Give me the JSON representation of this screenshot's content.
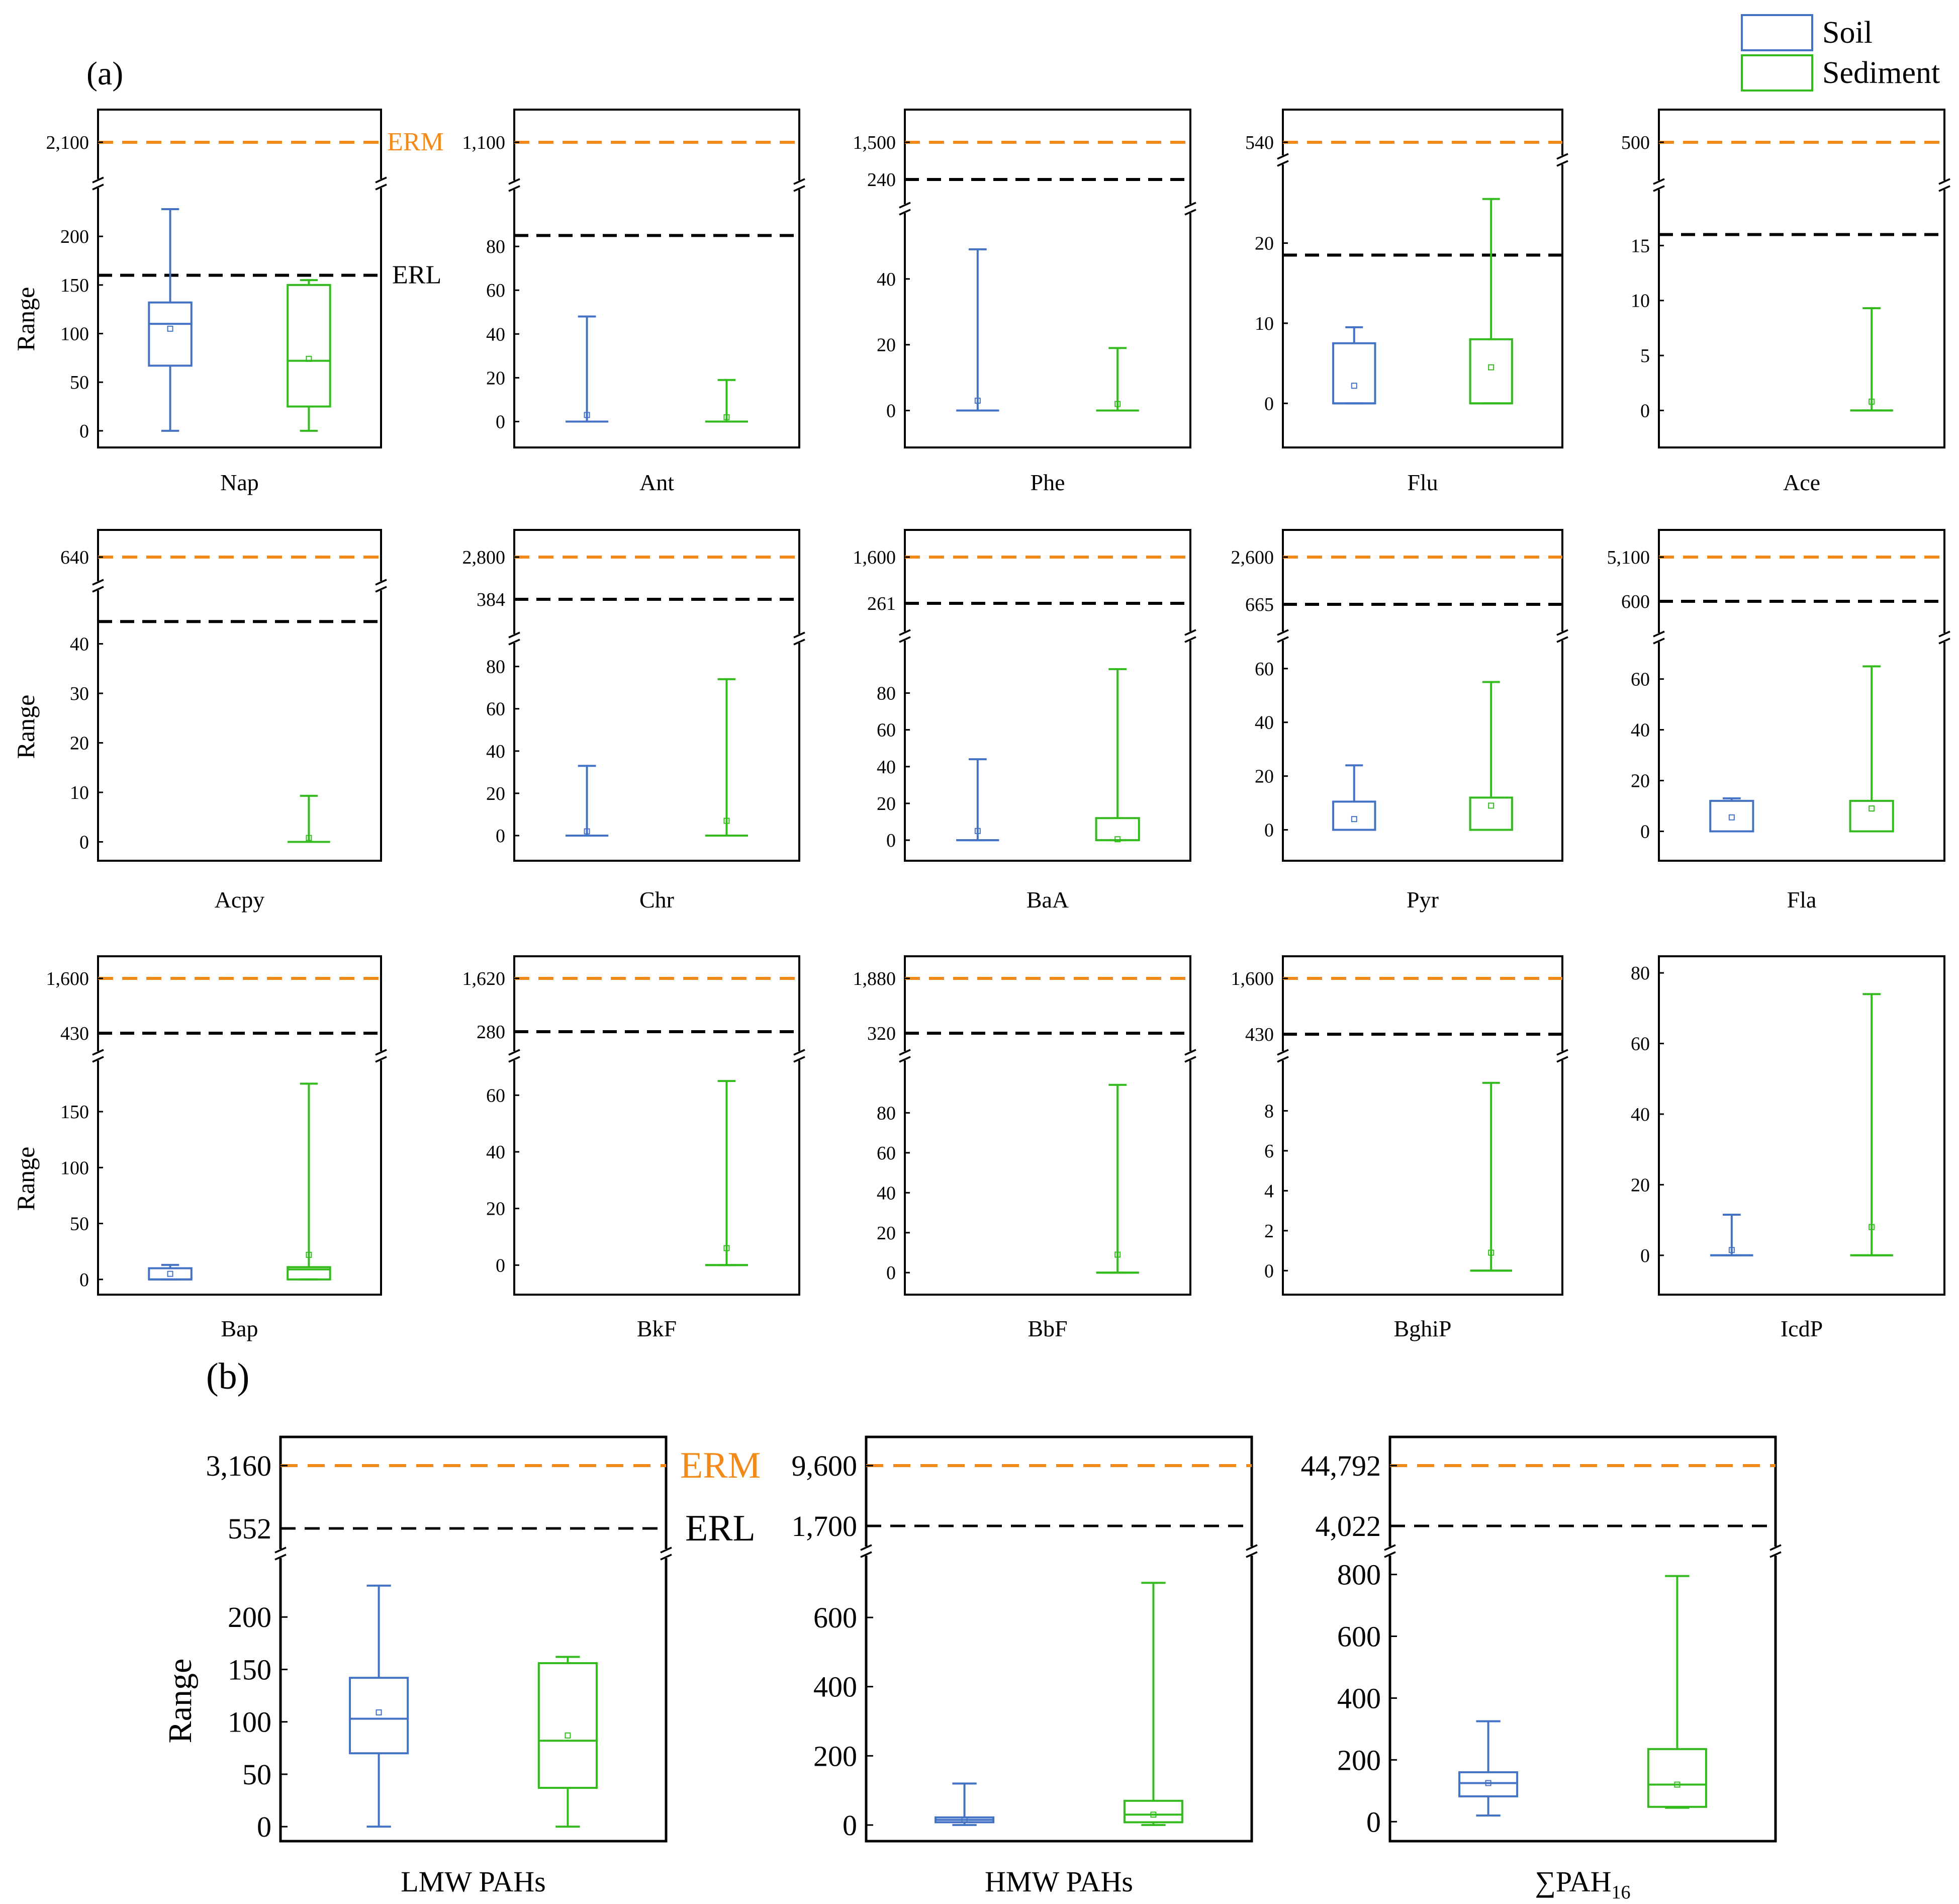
{
  "figure": {
    "panel_a_label": "(a)",
    "panel_b_label": "(b)",
    "legend": [
      {
        "label": "Soil",
        "color": "#4472c4"
      },
      {
        "label": "Sediment",
        "color": "#33bb1e"
      }
    ],
    "colors": {
      "soil": "#4472c4",
      "sediment": "#33bb1e",
      "erm": "#f28a19",
      "erl": "#000000"
    },
    "guide_labels": {
      "erm": "ERM",
      "erl": "ERL"
    }
  },
  "chart_data": [
    {
      "type": "box",
      "name": "Nap",
      "ylabel": "Range",
      "erm": {
        "tick": "2,100",
        "label": "ERM"
      },
      "erl": {
        "value": 160,
        "label": "ERL"
      },
      "ylim": [
        -13,
        243
      ],
      "yticks": [
        0,
        50,
        100,
        150,
        200
      ],
      "soil": {
        "min": 0,
        "q1": 67,
        "median": 110,
        "q3": 132,
        "max": 228,
        "mean": 105
      },
      "sediment": {
        "min": 0,
        "q1": 25,
        "median": 72,
        "q3": 150,
        "max": 155,
        "mean": 74
      }
    },
    {
      "type": "box",
      "name": "Ant",
      "erm": {
        "tick": "1,100"
      },
      "erl": {
        "value": 85
      },
      "ylim": [
        -10,
        103
      ],
      "yticks": [
        0,
        20,
        40,
        60,
        80
      ],
      "soil": {
        "min": 0,
        "q1": 0,
        "median": 0,
        "q3": 0,
        "max": 48,
        "mean": 3
      },
      "sediment": {
        "min": 0,
        "q1": 0,
        "median": 0,
        "q3": 0,
        "max": 19,
        "mean": 2
      }
    },
    {
      "type": "box",
      "name": "Phe",
      "erm": {
        "tick": "1,500"
      },
      "erl": {
        "tick": "240"
      },
      "ylim": [
        -10,
        58
      ],
      "yticks": [
        0,
        20,
        40
      ],
      "soil": {
        "min": 0,
        "q1": 0,
        "median": 0,
        "q3": 0,
        "max": 49,
        "mean": 3
      },
      "sediment": {
        "min": 0,
        "q1": 0,
        "median": 0,
        "q3": 0,
        "max": 19,
        "mean": 2
      }
    },
    {
      "type": "box",
      "name": "Flu",
      "erm": {
        "tick": "540"
      },
      "erl": {
        "value": 18.5
      },
      "ylim": [
        -5,
        29
      ],
      "yticks": [
        0,
        10,
        20
      ],
      "soil": {
        "min": 0,
        "q1": 0,
        "median": 0,
        "q3": 7.5,
        "max": 9.5,
        "mean": 2.2
      },
      "sediment": {
        "min": 0,
        "q1": 0,
        "median": 0,
        "q3": 8,
        "max": 25.5,
        "mean": 4.5
      }
    },
    {
      "type": "box",
      "name": "Ace",
      "erm": {
        "tick": "500"
      },
      "erl": {
        "value": 16
      },
      "ylim": [
        -3,
        19.5
      ],
      "yticks": [
        0,
        5,
        10,
        15
      ],
      "soil": null,
      "sediment": {
        "min": 0,
        "q1": 0,
        "median": 0,
        "q3": 0,
        "max": 9.3,
        "mean": 0.8
      }
    },
    {
      "type": "box",
      "name": "Acpy",
      "ylabel": "Range",
      "erm": {
        "tick": "640"
      },
      "erl": {
        "value": 44.5
      },
      "ylim": [
        -3,
        49.5
      ],
      "yticks": [
        0,
        10,
        20,
        30,
        40
      ],
      "soil": null,
      "sediment": {
        "min": 0,
        "q1": 0,
        "median": 0,
        "q3": 0,
        "max": 9.3,
        "mean": 0.8
      }
    },
    {
      "type": "box",
      "name": "Chr",
      "erm": {
        "tick": "2,800"
      },
      "erl": {
        "tick": "384"
      },
      "ylim": [
        -10,
        88
      ],
      "yticks": [
        0,
        20,
        40,
        60,
        80
      ],
      "soil": {
        "min": 0,
        "q1": 0,
        "median": 0,
        "q3": 0,
        "max": 33,
        "mean": 2
      },
      "sediment": {
        "min": 0,
        "q1": 0,
        "median": 0,
        "q3": 0,
        "max": 74,
        "mean": 7
      }
    },
    {
      "type": "box",
      "name": "BaA",
      "erm": {
        "tick": "1,600"
      },
      "erl": {
        "tick": "261"
      },
      "ylim": [
        -9,
        105
      ],
      "yticks": [
        0,
        20,
        40,
        60,
        80
      ],
      "soil": {
        "min": 0,
        "q1": 0,
        "median": 0,
        "q3": 0,
        "max": 44,
        "mean": 5
      },
      "sediment": {
        "min": 0,
        "q1": 0,
        "median": 0,
        "q3": 12,
        "max": 93,
        "mean": 0.5
      }
    },
    {
      "type": "box",
      "name": "Pyr",
      "erm": {
        "tick": "2,600"
      },
      "erl": {
        "tick": "665"
      },
      "ylim": [
        -10,
        68
      ],
      "yticks": [
        0,
        20,
        40,
        60
      ],
      "soil": {
        "min": 0,
        "q1": 0,
        "median": 0,
        "q3": 10.5,
        "max": 24,
        "mean": 4
      },
      "sediment": {
        "min": 0,
        "q1": 0,
        "median": 0,
        "q3": 12,
        "max": 55,
        "mean": 9
      }
    },
    {
      "type": "box",
      "name": "Fla",
      "erm": {
        "tick": "5,100"
      },
      "erl": {
        "tick": "600"
      },
      "ylim": [
        -10,
        72
      ],
      "yticks": [
        0,
        20,
        40,
        60
      ],
      "soil": {
        "min": 0,
        "q1": 0,
        "median": 0,
        "q3": 12,
        "max": 13,
        "mean": 5.5
      },
      "sediment": {
        "min": 0,
        "q1": 0,
        "median": 0,
        "q3": 12,
        "max": 65,
        "mean": 9
      }
    },
    {
      "type": "box",
      "name": "Bap",
      "ylabel": "Range",
      "erm": {
        "tick": "1,600"
      },
      "erl": {
        "tick": "430"
      },
      "ylim": [
        -10,
        190
      ],
      "yticks": [
        0,
        50,
        100,
        150
      ],
      "soil": {
        "min": 0,
        "q1": 0,
        "median": 0,
        "q3": 10,
        "max": 13,
        "mean": 5
      },
      "sediment": {
        "min": 0,
        "q1": 0,
        "median": 9,
        "q3": 11,
        "max": 175,
        "mean": 22
      }
    },
    {
      "type": "box",
      "name": "BkF",
      "erm": {
        "tick": "1,620"
      },
      "erl": {
        "tick": "280"
      },
      "ylim": [
        -9,
        70
      ],
      "yticks": [
        0,
        20,
        40,
        60
      ],
      "soil": null,
      "sediment": {
        "min": 0,
        "q1": 0,
        "median": 0,
        "q3": 0,
        "max": 65,
        "mean": 6
      }
    },
    {
      "type": "box",
      "name": "BbF",
      "erm": {
        "tick": "1,880"
      },
      "erl": {
        "tick": "320"
      },
      "ylim": [
        -9,
        103
      ],
      "yticks": [
        0,
        20,
        40,
        60,
        80
      ],
      "soil": null,
      "sediment": {
        "min": 0,
        "q1": 0,
        "median": 0,
        "q3": 0,
        "max": 94,
        "mean": 9
      }
    },
    {
      "type": "box",
      "name": "BghiP",
      "erm": {
        "tick": "1,600"
      },
      "erl": {
        "tick": "430"
      },
      "ylim": [
        -1,
        10.2
      ],
      "yticks": [
        0,
        2,
        4,
        6,
        8
      ],
      "soil": null,
      "sediment": {
        "min": 0,
        "q1": 0,
        "median": 0,
        "q3": 0,
        "max": 9.4,
        "mean": 0.9
      }
    },
    {
      "type": "box",
      "name": "IcdP",
      "ylim": [
        -10,
        84
      ],
      "yticks": [
        0,
        20,
        40,
        60,
        80
      ],
      "soil": {
        "min": 0,
        "q1": 0,
        "median": 0,
        "q3": 0,
        "max": 11.5,
        "mean": 1.5
      },
      "sediment": {
        "min": 0,
        "q1": 0,
        "median": 0,
        "q3": 0,
        "max": 74,
        "mean": 8
      }
    },
    {
      "type": "box",
      "name": "LMW PAHs",
      "ylabel": "Range",
      "erm": {
        "tick": "3,160",
        "label": "ERM"
      },
      "erl": {
        "tick": "552",
        "label": "ERL"
      },
      "ylim": [
        -10,
        250
      ],
      "yticks": [
        0,
        50,
        100,
        150,
        200
      ],
      "soil": {
        "min": 0,
        "q1": 70,
        "median": 103,
        "q3": 142,
        "max": 230,
        "mean": 109
      },
      "sediment": {
        "min": 0,
        "q1": 37,
        "median": 82,
        "q3": 156,
        "max": 162,
        "mean": 87
      }
    },
    {
      "type": "box",
      "name": "HMW PAHs",
      "erm": {
        "tick": "9,600"
      },
      "erl": {
        "tick": "1,700"
      },
      "ylim": [
        -35,
        760
      ],
      "yticks": [
        0,
        200,
        400,
        600
      ],
      "soil": {
        "min": 0,
        "q1": 8,
        "median": 15,
        "q3": 22,
        "max": 120,
        "mean": 15
      },
      "sediment": {
        "min": 0,
        "q1": 8,
        "median": 30,
        "q3": 70,
        "max": 700,
        "mean": 30
      }
    },
    {
      "type": "box",
      "name": "∑PAH16",
      "erm": {
        "tick": "44,792"
      },
      "erl": {
        "tick": "4,022"
      },
      "ylim": [
        -50,
        840
      ],
      "yticks": [
        0,
        200,
        400,
        600,
        800
      ],
      "soil": {
        "min": 20,
        "q1": 82,
        "median": 125,
        "q3": 160,
        "max": 325,
        "mean": 125
      },
      "sediment": {
        "min": 45,
        "q1": 48,
        "median": 120,
        "q3": 235,
        "max": 795,
        "mean": 120
      }
    }
  ]
}
